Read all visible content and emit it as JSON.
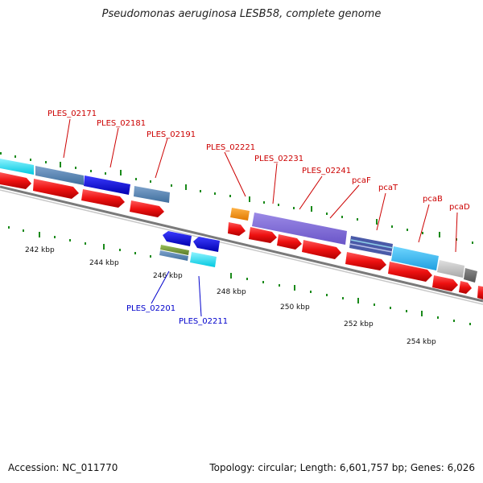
{
  "title": "Pseudomonas aeruginosa LESB58, complete genome",
  "footer": {
    "accession": "Accession: NC_011770",
    "topology": "Topology: circular; Length: 6,601,757 bp; Genes: 6,026"
  },
  "colors": {
    "backbone": "#808080",
    "tick": "#1a8a1a",
    "cds": "#ee1111",
    "label_forward": "#cc0000",
    "label_reverse": "#0000cc"
  },
  "scale_labels": [
    "242 kbp",
    "244 kbp",
    "246 kbp",
    "248 kbp",
    "250 kbp",
    "252 kbp",
    "254 kbp"
  ],
  "gene_labels_forward": [
    "PLES_02171",
    "PLES_02181",
    "PLES_02191",
    "PLES_02221",
    "PLES_02231",
    "PLES_02241",
    "pcaF",
    "pcaT",
    "pcaB",
    "pcaD"
  ],
  "gene_labels_reverse": [
    "PLES_02201",
    "PLES_02211"
  ]
}
